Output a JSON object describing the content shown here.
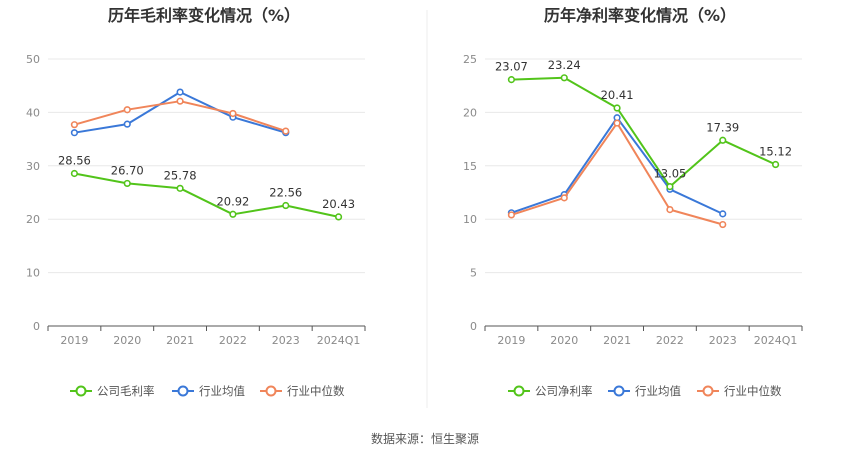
{
  "footer": {
    "source": "数据来源：恒生聚源"
  },
  "colors": {
    "company": "#52c41a",
    "industry_avg": "#3a78d8",
    "industry_median": "#f0855a",
    "grid": "#e8e8e8",
    "axis": "#555555"
  },
  "chart_data": [
    {
      "type": "line",
      "title": "历年毛利率变化情况（%）",
      "categories": [
        "2019",
        "2020",
        "2021",
        "2022",
        "2023",
        "2024Q1"
      ],
      "ylim": [
        0,
        50
      ],
      "yticks": [
        0,
        10,
        20,
        30,
        40,
        50
      ],
      "grid": true,
      "legend_position": "bottom",
      "series": [
        {
          "name": "公司毛利率",
          "color": "#52c41a",
          "labels": true,
          "values": [
            28.56,
            26.7,
            25.78,
            20.92,
            22.56,
            20.43
          ]
        },
        {
          "name": "行业均值",
          "color": "#3a78d8",
          "labels": false,
          "values": [
            36.2,
            37.8,
            43.8,
            39.1,
            36.2,
            null
          ]
        },
        {
          "name": "行业中位数",
          "color": "#f0855a",
          "labels": false,
          "values": [
            37.7,
            40.5,
            42.1,
            39.8,
            36.5,
            null
          ]
        }
      ]
    },
    {
      "type": "line",
      "title": "历年净利率变化情况（%）",
      "categories": [
        "2019",
        "2020",
        "2021",
        "2022",
        "2023",
        "2024Q1"
      ],
      "ylim": [
        0,
        25
      ],
      "yticks": [
        0,
        5,
        10,
        15,
        20,
        25
      ],
      "grid": true,
      "legend_position": "bottom",
      "series": [
        {
          "name": "公司净利率",
          "color": "#52c41a",
          "labels": true,
          "values": [
            23.07,
            23.24,
            20.41,
            13.05,
            17.39,
            15.12
          ]
        },
        {
          "name": "行业均值",
          "color": "#3a78d8",
          "labels": false,
          "values": [
            10.6,
            12.3,
            19.5,
            12.8,
            10.5,
            null
          ]
        },
        {
          "name": "行业中位数",
          "color": "#f0855a",
          "labels": false,
          "values": [
            10.4,
            12.0,
            19.0,
            10.9,
            9.5,
            null
          ]
        }
      ]
    }
  ]
}
